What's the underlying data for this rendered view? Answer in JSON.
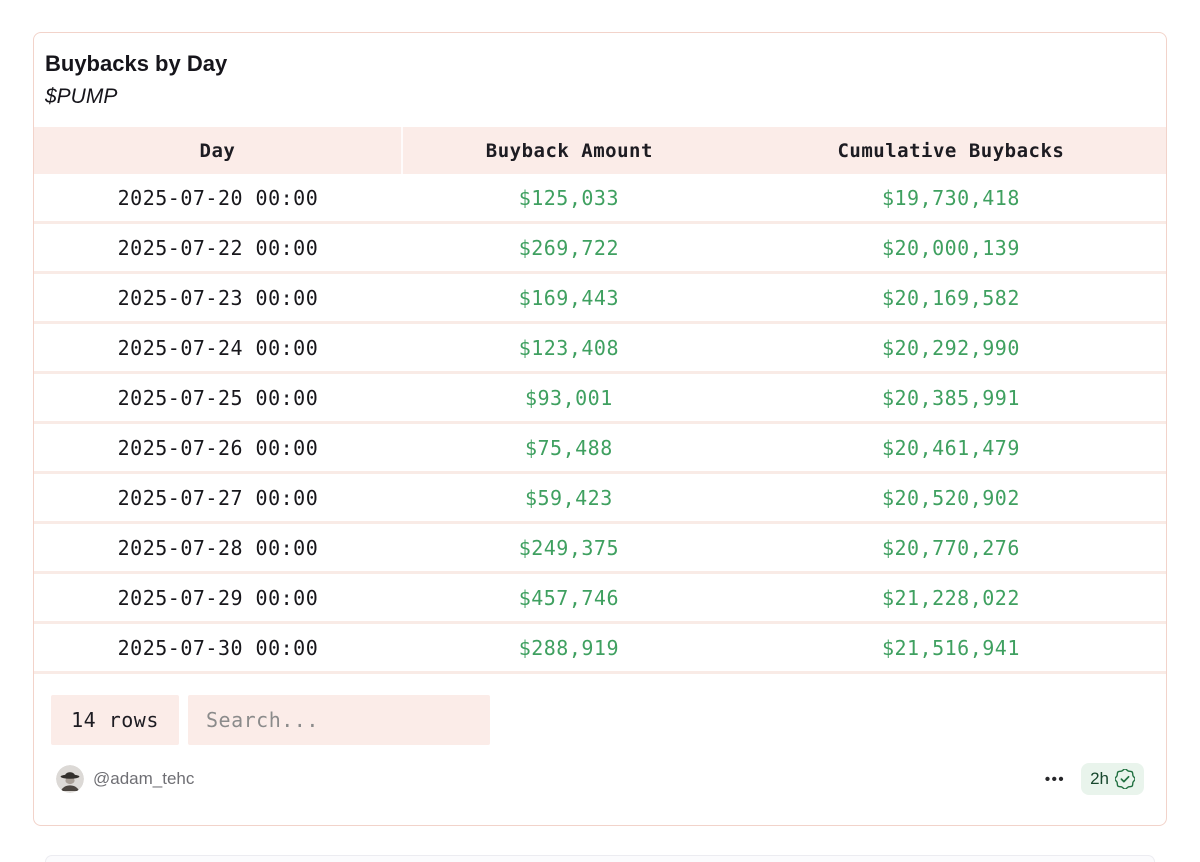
{
  "card": {
    "title": "Buybacks by Day",
    "subtitle": "$PUMP"
  },
  "table": {
    "columns": [
      "Day",
      "Buyback Amount",
      "Cumulative Buybacks"
    ],
    "rows": [
      {
        "day": "2025-07-20 00:00",
        "buyback": "$125,033",
        "cumulative": "$19,730,418"
      },
      {
        "day": "2025-07-22 00:00",
        "buyback": "$269,722",
        "cumulative": "$20,000,139"
      },
      {
        "day": "2025-07-23 00:00",
        "buyback": "$169,443",
        "cumulative": "$20,169,582"
      },
      {
        "day": "2025-07-24 00:00",
        "buyback": "$123,408",
        "cumulative": "$20,292,990"
      },
      {
        "day": "2025-07-25 00:00",
        "buyback": "$93,001",
        "cumulative": "$20,385,991"
      },
      {
        "day": "2025-07-26 00:00",
        "buyback": "$75,488",
        "cumulative": "$20,461,479"
      },
      {
        "day": "2025-07-27 00:00",
        "buyback": "$59,423",
        "cumulative": "$20,520,902"
      },
      {
        "day": "2025-07-28 00:00",
        "buyback": "$249,375",
        "cumulative": "$20,770,276"
      },
      {
        "day": "2025-07-29 00:00",
        "buyback": "$457,746",
        "cumulative": "$21,228,022"
      },
      {
        "day": "2025-07-30 00:00",
        "buyback": "$288,919",
        "cumulative": "$21,516,941"
      }
    ]
  },
  "footer": {
    "row_count_label": "14 rows",
    "search_placeholder": "Search..."
  },
  "attribution": {
    "handle": "@adam_tehc",
    "more_label": "•••",
    "timestamp": "2h",
    "verified_icon": "verified-seal-check"
  },
  "colors": {
    "accent_pink_bg": "#fbece8",
    "row_separator": "#f9ebe6",
    "card_border": "#f2d3ca",
    "money_green": "#3fa060",
    "badge_green_bg": "#e9f4ec",
    "badge_green_text": "#17472d"
  }
}
